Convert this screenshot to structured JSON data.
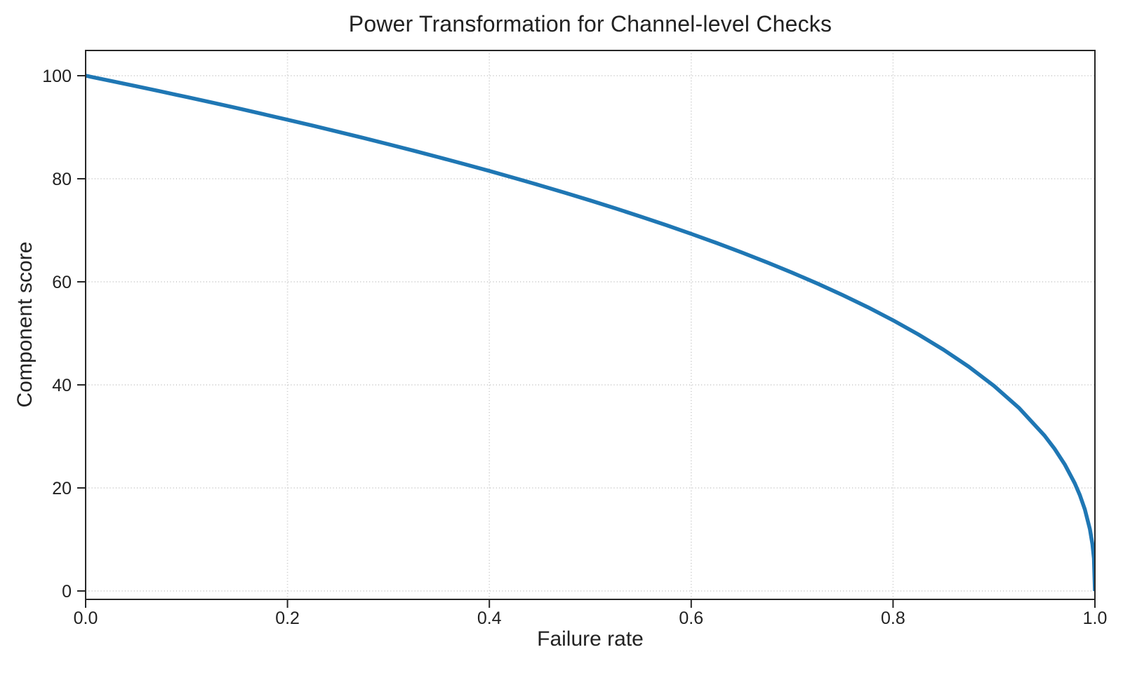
{
  "chart_data": {
    "type": "line",
    "title": "Power Transformation for Channel-level Checks",
    "xlabel": "Failure rate",
    "ylabel": "Component score",
    "xlim": [
      0.0,
      1.0
    ],
    "ylim": [
      -2,
      105
    ],
    "xticks": [
      0.0,
      0.2,
      0.4,
      0.6,
      0.8,
      1.0
    ],
    "xtick_labels": [
      "0.0",
      "0.2",
      "0.4",
      "0.6",
      "0.8",
      "1.0"
    ],
    "yticks": [
      0,
      20,
      40,
      60,
      80,
      100
    ],
    "ytick_labels": [
      "0",
      "20",
      "40",
      "60",
      "80",
      "100"
    ],
    "grid": "dotted",
    "grid_color": "#c9c9c9",
    "legend": "none",
    "axis_color": "#262626",
    "series": [
      {
        "name": "component-score-curve",
        "color": "#1f77b4",
        "line_width": 5.5,
        "function": "score = 100 * (1 - failure_rate)^0.4",
        "x": [
          0,
          0.025,
          0.05,
          0.075,
          0.1,
          0.125,
          0.15,
          0.175,
          0.2,
          0.225,
          0.25,
          0.275,
          0.3,
          0.325,
          0.35,
          0.375,
          0.4,
          0.425,
          0.45,
          0.475,
          0.5,
          0.525,
          0.55,
          0.575,
          0.6,
          0.625,
          0.65,
          0.675,
          0.7,
          0.725,
          0.75,
          0.775,
          0.8,
          0.825,
          0.85,
          0.875,
          0.9,
          0.925,
          0.95,
          0.96,
          0.97,
          0.98,
          0.985,
          0.99,
          0.995,
          0.9975,
          0.999,
          1.0
        ],
        "y": [
          100,
          98.99,
          97.97,
          96.93,
          95.87,
          94.8,
          93.71,
          92.59,
          91.46,
          90.31,
          89.13,
          87.93,
          86.7,
          85.45,
          84.17,
          82.86,
          81.52,
          80.14,
          78.73,
          77.28,
          75.79,
          74.25,
          72.66,
          71.02,
          69.31,
          67.55,
          65.71,
          63.79,
          61.78,
          59.67,
          57.43,
          55.07,
          52.53,
          49.8,
          46.82,
          43.53,
          39.81,
          35.48,
          30.17,
          27.6,
          24.6,
          20.91,
          18.64,
          15.85,
          12.01,
          9.1,
          6.31,
          0
        ]
      }
    ]
  }
}
